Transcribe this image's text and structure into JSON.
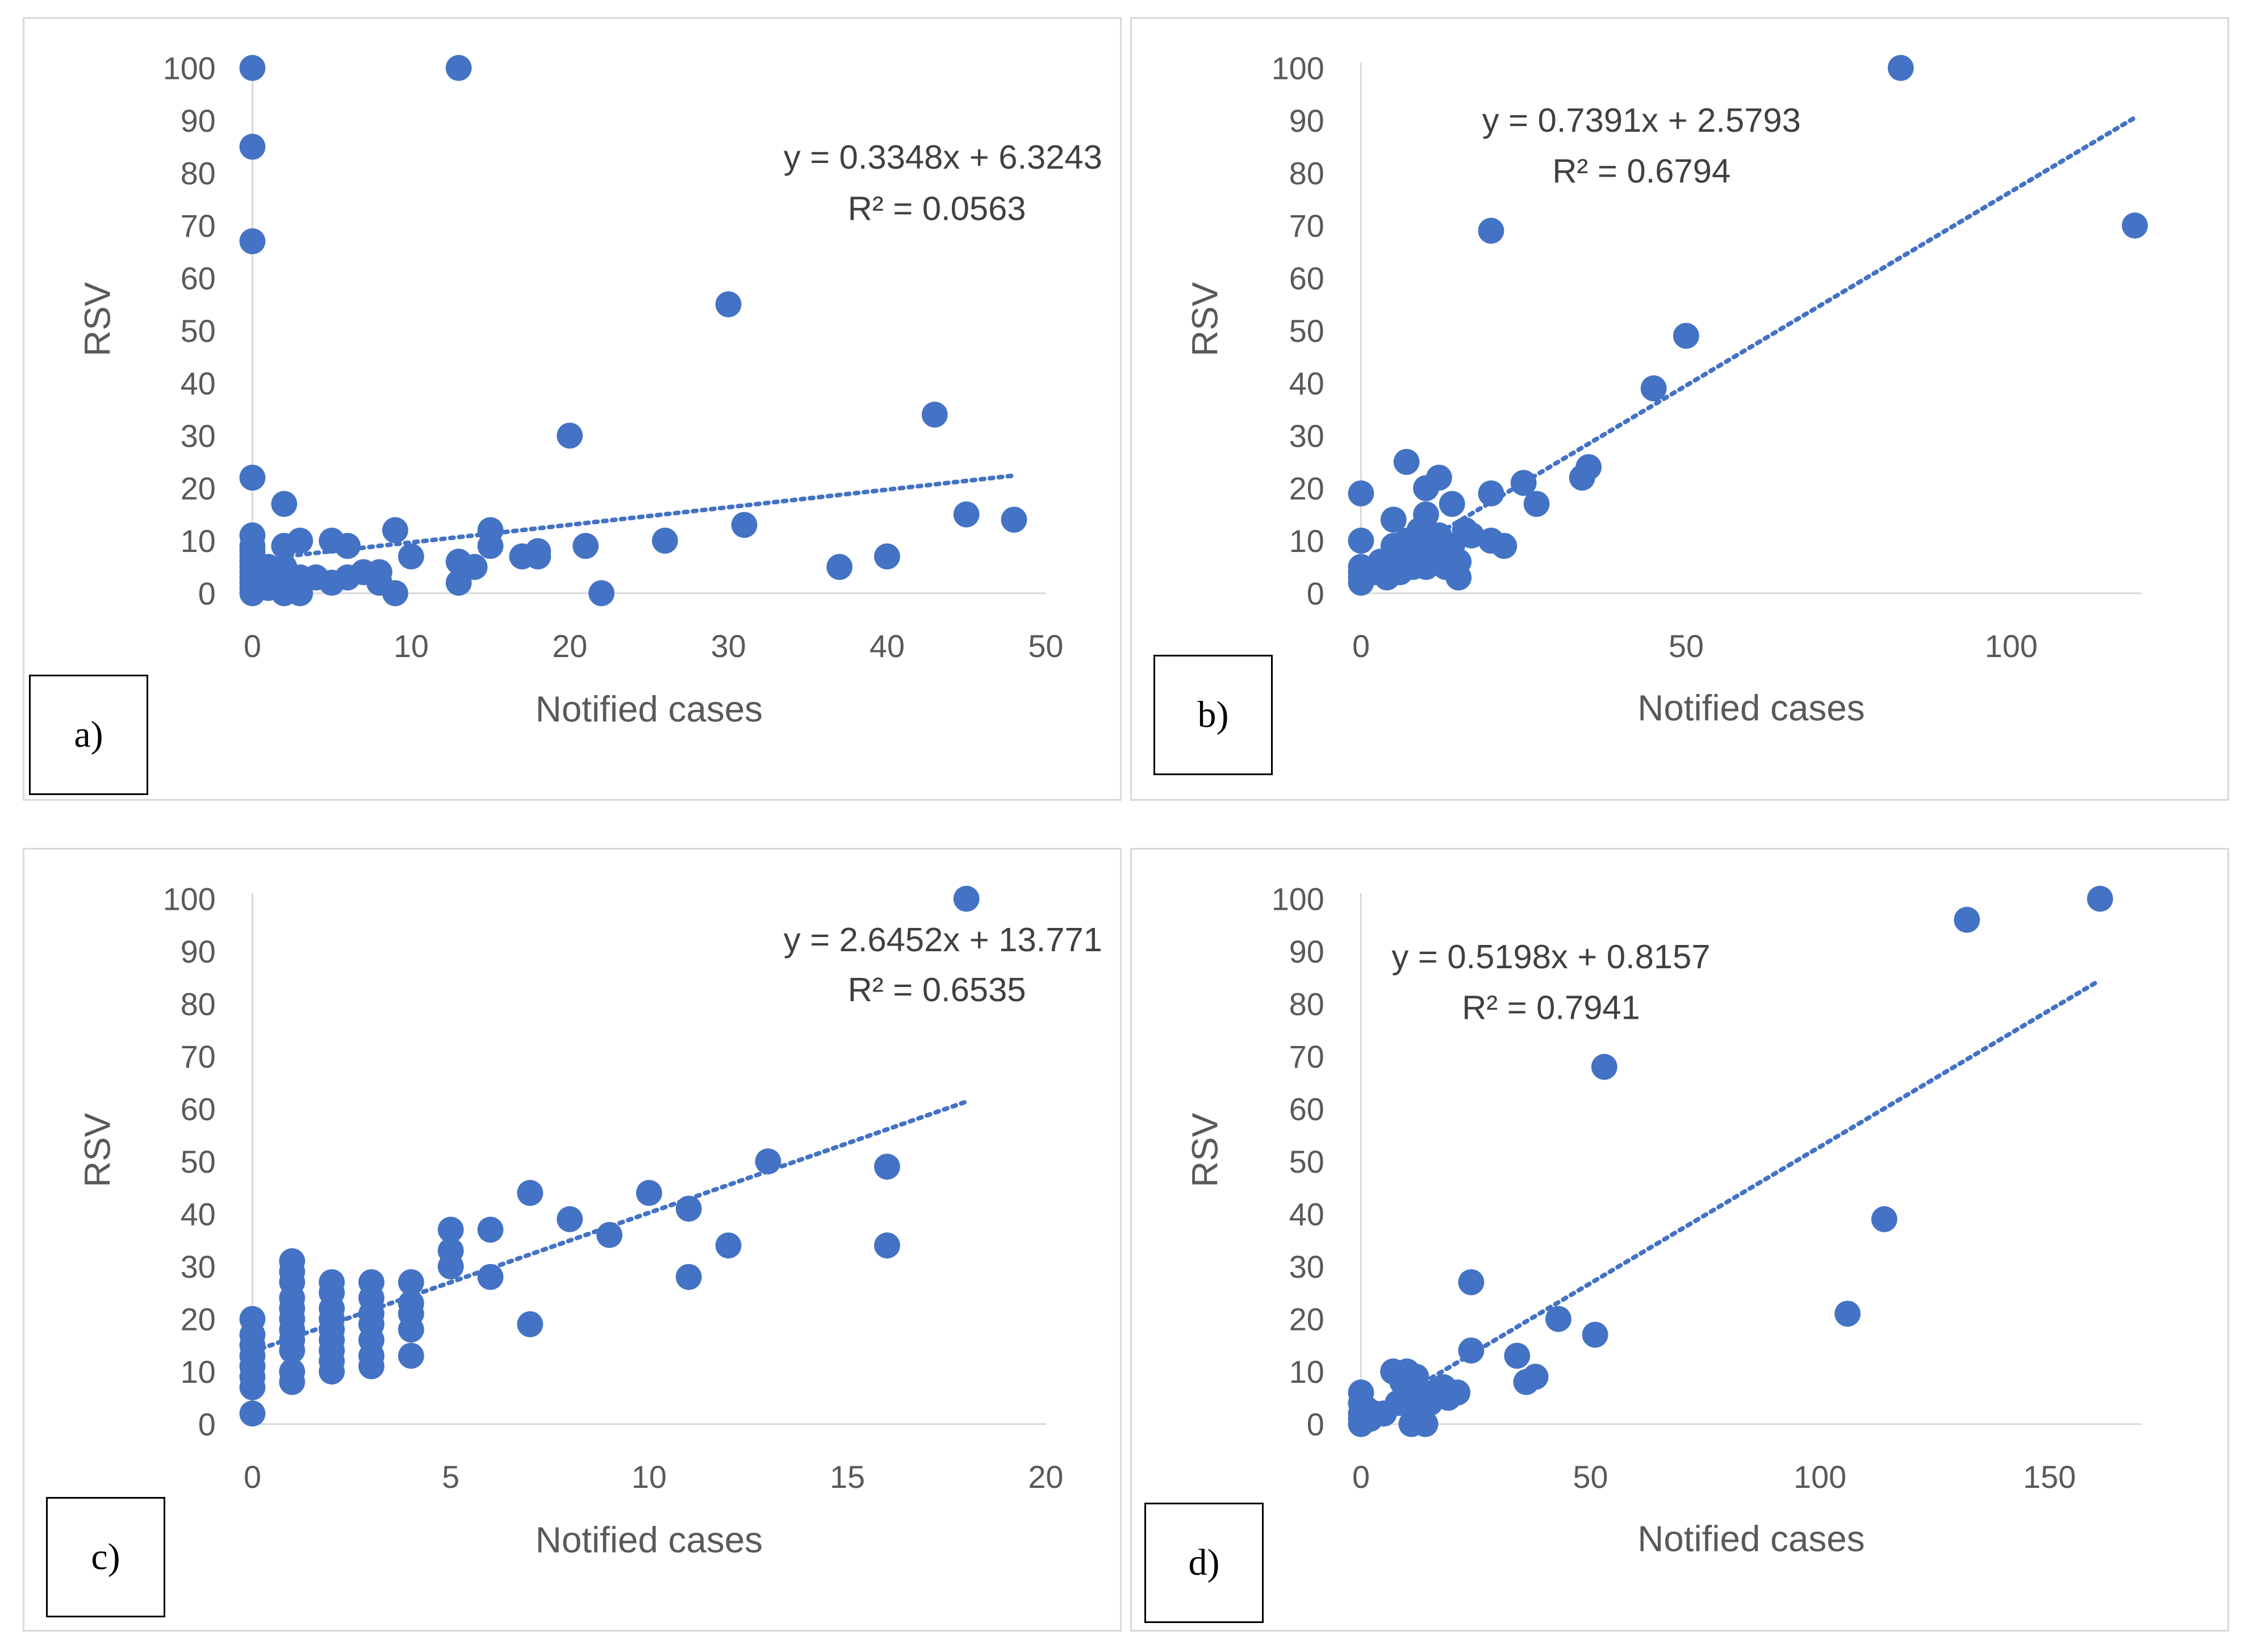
{
  "chart_data": [
    {
      "panel": "a)",
      "type": "scatter",
      "xlabel": "Notified cases",
      "ylabel": "RSV",
      "xlim": [
        0,
        50
      ],
      "ylim": [
        0,
        100
      ],
      "xticks": [
        0,
        10,
        20,
        30,
        40,
        50
      ],
      "yticks": [
        0,
        10,
        20,
        30,
        40,
        50,
        60,
        70,
        80,
        90,
        100
      ],
      "equation": "y = 0.3348x + 6.3243",
      "r2": "R² = 0.0563",
      "trend": {
        "slope": 0.3348,
        "intercept": 6.3243,
        "x_start": 0,
        "x_end": 48
      },
      "color": "#4472c4",
      "points": [
        [
          0,
          100
        ],
        [
          0,
          85
        ],
        [
          0,
          67
        ],
        [
          0,
          22
        ],
        [
          0,
          11
        ],
        [
          0,
          9
        ],
        [
          0,
          8
        ],
        [
          0,
          7
        ],
        [
          0,
          6
        ],
        [
          0,
          5
        ],
        [
          0,
          4
        ],
        [
          0,
          3
        ],
        [
          0,
          2
        ],
        [
          0,
          1
        ],
        [
          0,
          0
        ],
        [
          1,
          5
        ],
        [
          1,
          3
        ],
        [
          1,
          1
        ],
        [
          2,
          17
        ],
        [
          2,
          9
        ],
        [
          2,
          5
        ],
        [
          2,
          2
        ],
        [
          2,
          0
        ],
        [
          3,
          10
        ],
        [
          3,
          3
        ],
        [
          3,
          0
        ],
        [
          4,
          3
        ],
        [
          5,
          10
        ],
        [
          5,
          2
        ],
        [
          6,
          9
        ],
        [
          6,
          3
        ],
        [
          7,
          4
        ],
        [
          8,
          4
        ],
        [
          8,
          2
        ],
        [
          9,
          12
        ],
        [
          9,
          0
        ],
        [
          10,
          7
        ],
        [
          13,
          100
        ],
        [
          13,
          6
        ],
        [
          13,
          2
        ],
        [
          14,
          5
        ],
        [
          15,
          12
        ],
        [
          15,
          9
        ],
        [
          17,
          7
        ],
        [
          18,
          8
        ],
        [
          18,
          7
        ],
        [
          20,
          30
        ],
        [
          21,
          9
        ],
        [
          22,
          0
        ],
        [
          26,
          10
        ],
        [
          30,
          55
        ],
        [
          31,
          13
        ],
        [
          37,
          5
        ],
        [
          40,
          7
        ],
        [
          43,
          34
        ],
        [
          45,
          15
        ],
        [
          48,
          14
        ]
      ]
    },
    {
      "panel": "b)",
      "type": "scatter",
      "xlabel": "Notified cases",
      "ylabel": "RSV",
      "xlim": [
        0,
        120
      ],
      "ylim": [
        0,
        100
      ],
      "xticks": [
        0,
        50,
        100
      ],
      "yticks": [
        0,
        10,
        20,
        30,
        40,
        50,
        60,
        70,
        80,
        90,
        100
      ],
      "equation": "y = 0.7391x + 2.5793",
      "r2": "R² = 0.6794",
      "trend": {
        "slope": 0.7391,
        "intercept": 2.5793,
        "x_start": 0,
        "x_end": 119
      },
      "color": "#4472c4",
      "points": [
        [
          0,
          19
        ],
        [
          0,
          10
        ],
        [
          0,
          5
        ],
        [
          0,
          4
        ],
        [
          0,
          3
        ],
        [
          0,
          2
        ],
        [
          2,
          4
        ],
        [
          3,
          6
        ],
        [
          4,
          3
        ],
        [
          5,
          14
        ],
        [
          5,
          9
        ],
        [
          6,
          6
        ],
        [
          6,
          4
        ],
        [
          7,
          25
        ],
        [
          7,
          10
        ],
        [
          8,
          8
        ],
        [
          8,
          5
        ],
        [
          9,
          12
        ],
        [
          9,
          6
        ],
        [
          10,
          20
        ],
        [
          10,
          15
        ],
        [
          10,
          10
        ],
        [
          10,
          5
        ],
        [
          11,
          8
        ],
        [
          12,
          22
        ],
        [
          12,
          11
        ],
        [
          12,
          7
        ],
        [
          13,
          5
        ],
        [
          14,
          17
        ],
        [
          14,
          9
        ],
        [
          15,
          3
        ],
        [
          15,
          6
        ],
        [
          16,
          12
        ],
        [
          17,
          11
        ],
        [
          20,
          69
        ],
        [
          20,
          19
        ],
        [
          20,
          10
        ],
        [
          22,
          9
        ],
        [
          25,
          21
        ],
        [
          27,
          17
        ],
        [
          34,
          22
        ],
        [
          35,
          24
        ],
        [
          45,
          39
        ],
        [
          50,
          49
        ],
        [
          83,
          100
        ],
        [
          119,
          70
        ]
      ]
    },
    {
      "panel": "c)",
      "type": "scatter",
      "xlabel": "Notified cases",
      "ylabel": "RSV",
      "xlim": [
        0,
        20
      ],
      "ylim": [
        0,
        100
      ],
      "xticks": [
        0,
        5,
        10,
        15,
        20
      ],
      "yticks": [
        0,
        10,
        20,
        30,
        40,
        50,
        60,
        70,
        80,
        90,
        100
      ],
      "equation": "y = 2.6452x + 13.771",
      "r2": "R² = 0.6535",
      "trend": {
        "slope": 2.6452,
        "intercept": 13.771,
        "x_start": 0,
        "x_end": 18
      },
      "color": "#4472c4",
      "points": [
        [
          0,
          2
        ],
        [
          0,
          7
        ],
        [
          0,
          9
        ],
        [
          0,
          11
        ],
        [
          0,
          13
        ],
        [
          0,
          15
        ],
        [
          0,
          17
        ],
        [
          0,
          20
        ],
        [
          1,
          8
        ],
        [
          1,
          10
        ],
        [
          1,
          14
        ],
        [
          1,
          16
        ],
        [
          1,
          18
        ],
        [
          1,
          20
        ],
        [
          1,
          22
        ],
        [
          1,
          24
        ],
        [
          1,
          27
        ],
        [
          1,
          29
        ],
        [
          1,
          31
        ],
        [
          2,
          10
        ],
        [
          2,
          12
        ],
        [
          2,
          14
        ],
        [
          2,
          16
        ],
        [
          2,
          18
        ],
        [
          2,
          20
        ],
        [
          2,
          22
        ],
        [
          2,
          25
        ],
        [
          2,
          27
        ],
        [
          3,
          11
        ],
        [
          3,
          13
        ],
        [
          3,
          16
        ],
        [
          3,
          19
        ],
        [
          3,
          21
        ],
        [
          3,
          24
        ],
        [
          3,
          27
        ],
        [
          4,
          13
        ],
        [
          4,
          18
        ],
        [
          4,
          21
        ],
        [
          4,
          23
        ],
        [
          4,
          27
        ],
        [
          5,
          30
        ],
        [
          5,
          33
        ],
        [
          5,
          37
        ],
        [
          6,
          28
        ],
        [
          6,
          37
        ],
        [
          7,
          19
        ],
        [
          7,
          44
        ],
        [
          8,
          39
        ],
        [
          9,
          36
        ],
        [
          10,
          44
        ],
        [
          11,
          28
        ],
        [
          11,
          41
        ],
        [
          12,
          34
        ],
        [
          13,
          50
        ],
        [
          16,
          34
        ],
        [
          16,
          49
        ],
        [
          18,
          100
        ]
      ]
    },
    {
      "panel": "d)",
      "type": "scatter",
      "xlabel": "Notified cases",
      "ylabel": "RSV",
      "xlim": [
        0,
        170
      ],
      "ylim": [
        0,
        100
      ],
      "xticks": [
        0,
        50,
        100,
        150
      ],
      "yticks": [
        0,
        10,
        20,
        30,
        40,
        50,
        60,
        70,
        80,
        90,
        100
      ],
      "equation": "y = 0.5198x + 0.8157",
      "r2": "R² = 0.7941",
      "trend": {
        "slope": 0.5198,
        "intercept": 0.8157,
        "x_start": 0,
        "x_end": 160
      },
      "color": "#4472c4",
      "points": [
        [
          0,
          6
        ],
        [
          0,
          4
        ],
        [
          0,
          2
        ],
        [
          0,
          1
        ],
        [
          0,
          0
        ],
        [
          1,
          3
        ],
        [
          2,
          1
        ],
        [
          3,
          2
        ],
        [
          5,
          2
        ],
        [
          7,
          10
        ],
        [
          8,
          4
        ],
        [
          9,
          8
        ],
        [
          10,
          10
        ],
        [
          10,
          6
        ],
        [
          11,
          3
        ],
        [
          11,
          0
        ],
        [
          12,
          9
        ],
        [
          12,
          5
        ],
        [
          13,
          2
        ],
        [
          14,
          0
        ],
        [
          15,
          4
        ],
        [
          16,
          6
        ],
        [
          18,
          7
        ],
        [
          19,
          5
        ],
        [
          21,
          6
        ],
        [
          24,
          27
        ],
        [
          24,
          14
        ],
        [
          34,
          13
        ],
        [
          36,
          8
        ],
        [
          38,
          9
        ],
        [
          43,
          20
        ],
        [
          51,
          17
        ],
        [
          53,
          68
        ],
        [
          106,
          21
        ],
        [
          114,
          39
        ],
        [
          132,
          96
        ],
        [
          161,
          100
        ]
      ]
    }
  ]
}
